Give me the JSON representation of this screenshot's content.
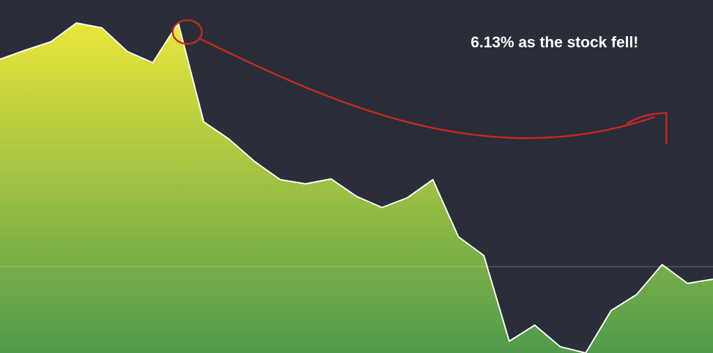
{
  "chart_data": {
    "type": "area",
    "annotation": "6.13% as the stock fell!",
    "values": [
      422,
      435,
      447,
      474,
      467,
      433,
      417,
      474,
      332,
      307,
      275,
      249,
      243,
      250,
      225,
      209,
      223,
      249,
      167,
      140,
      17,
      40,
      9,
      0,
      61,
      84,
      127,
      100,
      106
    ],
    "ylim": [
      0,
      507
    ],
    "reference_line": 124,
    "color_top": "#e9e63b",
    "color_bottom": "#4f9a4b",
    "line_color": "#ffffff"
  }
}
